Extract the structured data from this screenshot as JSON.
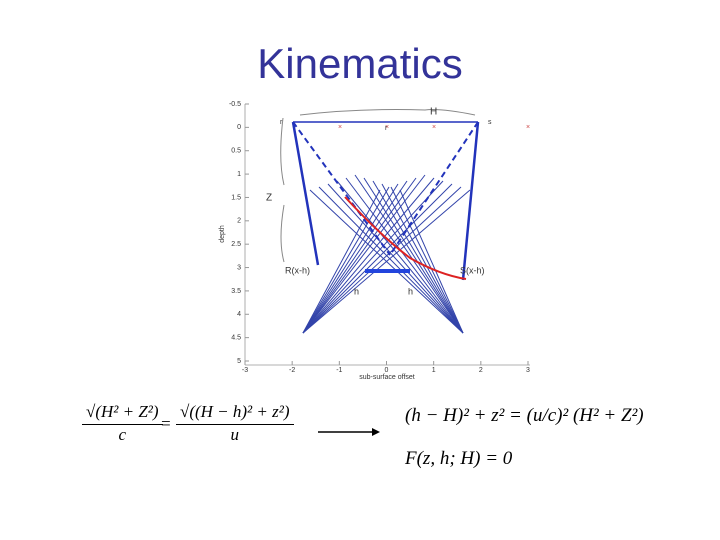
{
  "title": "Kinematics",
  "plot": {
    "ylabel": "depth",
    "xlabel": "sub-surface offset",
    "yticks": [
      "-0.5",
      "0",
      "0.5",
      "1",
      "1.5",
      "2",
      "2.5",
      "3",
      "3.5",
      "4",
      "4.5",
      "5"
    ],
    "xticks": [
      "-3",
      "-2",
      "-1",
      "0",
      "1",
      "2",
      "3"
    ],
    "labels": {
      "H": "H",
      "Z": "Z",
      "r1": "r",
      "r2": "r",
      "s": "s",
      "R": "R(x-h)",
      "S": "S(x-h)",
      "h1": "h",
      "h2": "h"
    }
  },
  "equations": {
    "left_num1": "√(H² + Z²)",
    "left_den1": "c",
    "eq": "=",
    "left_num2": "√((H − h)² + z²)",
    "left_den2": "u",
    "right1": "(h − H)² + z² = (u/c)² (H² + Z²)",
    "right2": "F(z, h; H) = 0"
  }
}
